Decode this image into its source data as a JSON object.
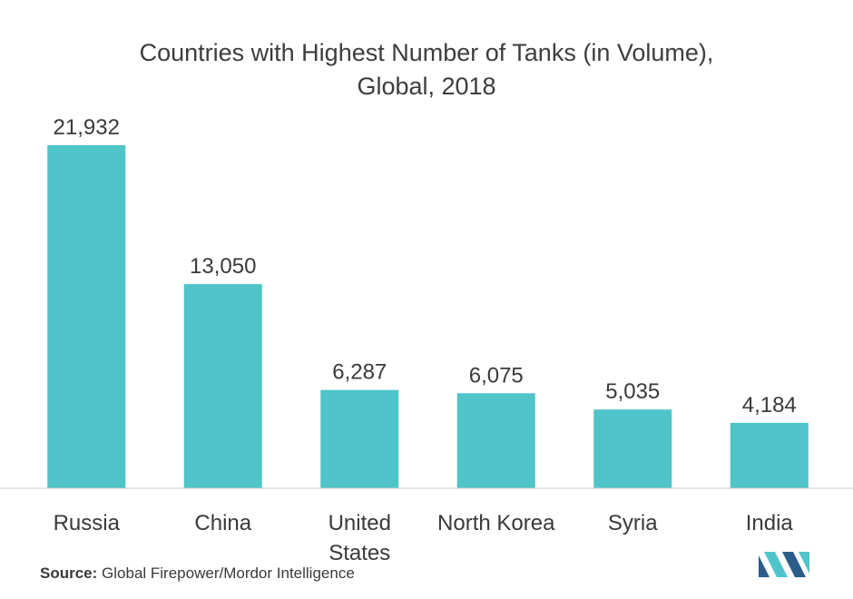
{
  "chart_data": {
    "type": "bar",
    "title_line1": "Countries with Highest Number of Tanks (in Volume),",
    "title_line2": "Global, 2018",
    "categories": [
      "Russia",
      "China",
      "United States",
      "North Korea",
      "Syria",
      "India"
    ],
    "category_lines": [
      [
        "Russia"
      ],
      [
        "China"
      ],
      [
        "United",
        "States"
      ],
      [
        "North Korea"
      ],
      [
        "Syria"
      ],
      [
        "India"
      ]
    ],
    "values": [
      21932,
      13050,
      6287,
      6075,
      5035,
      4184
    ],
    "value_labels": [
      "21,932",
      "13,050",
      "6,287",
      "6,075",
      "5,035",
      "4,184"
    ],
    "xlabel": "",
    "ylabel": "",
    "ylim": [
      0,
      21932
    ],
    "grid": false,
    "legend": "none",
    "bar_color": "#4fc4c9"
  },
  "source": {
    "label": "Source:",
    "text": "Global Firepower/Mordor Intelligence"
  },
  "colors": {
    "bar": "#4fc4c9",
    "axis": "#cccccc",
    "logo_dark": "#2a5d8a",
    "logo_light": "#4fc4c9"
  },
  "logo": {
    "icon": "mordor-intelligence-logo-icon"
  }
}
